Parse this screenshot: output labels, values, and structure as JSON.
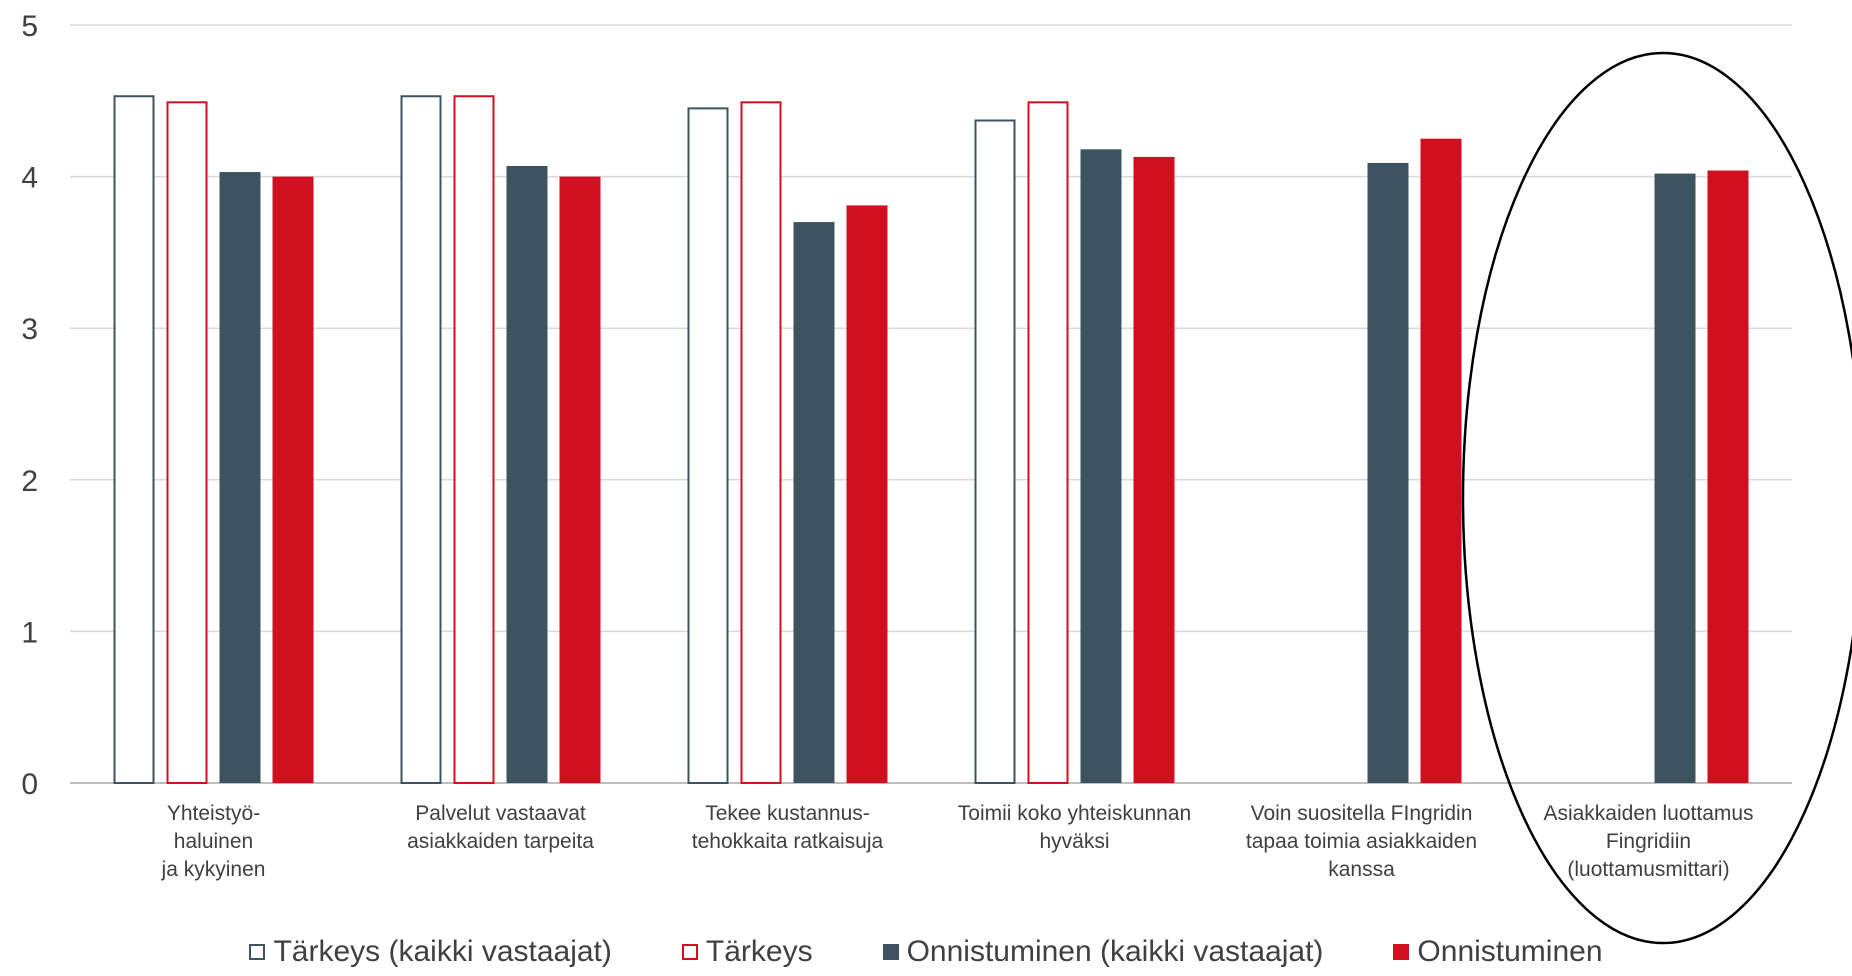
{
  "chart_data": {
    "type": "bar",
    "categories": [
      [
        "Yhteistyö-",
        "haluinen",
        "ja kykyinen"
      ],
      [
        "Palvelut vastaavat",
        "asiakkaiden tarpeita"
      ],
      [
        "Tekee kustannus-",
        "tehokkaita ratkaisuja"
      ],
      [
        "Toimii koko yhteiskunnan",
        "hyväksi"
      ],
      [
        "Voin suositella FIngridin",
        "tapaa toimia asiakkaiden",
        "kanssa"
      ],
      [
        "Asiakkaiden luottamus",
        "Fingridiin",
        "(luottamusmittari)"
      ]
    ],
    "series": [
      {
        "name": "Tärkeys (kaikki vastaajat)",
        "values": [
          4.53,
          4.53,
          4.45,
          4.37,
          null,
          null
        ],
        "style": "outline",
        "color": "#3d5360"
      },
      {
        "name": "Tärkeys",
        "values": [
          4.49,
          4.53,
          4.49,
          4.49,
          null,
          null
        ],
        "style": "outline",
        "color": "#d0101e"
      },
      {
        "name": "Onnistuminen (kaikki vastaajat)",
        "values": [
          4.03,
          4.07,
          3.7,
          4.18,
          4.09,
          4.02
        ],
        "style": "filled",
        "color": "#3d5360"
      },
      {
        "name": "Onnistuminen",
        "values": [
          4.0,
          4.0,
          3.81,
          4.13,
          4.25,
          4.04
        ],
        "style": "filled",
        "color": "#d0101e"
      }
    ],
    "ylim": [
      0,
      5
    ],
    "yticks": [
      "0",
      "1",
      "2",
      "3",
      "4",
      "5"
    ],
    "grid": true,
    "legend_position": "bottom",
    "annotation": "ellipse highlighting the last category"
  }
}
